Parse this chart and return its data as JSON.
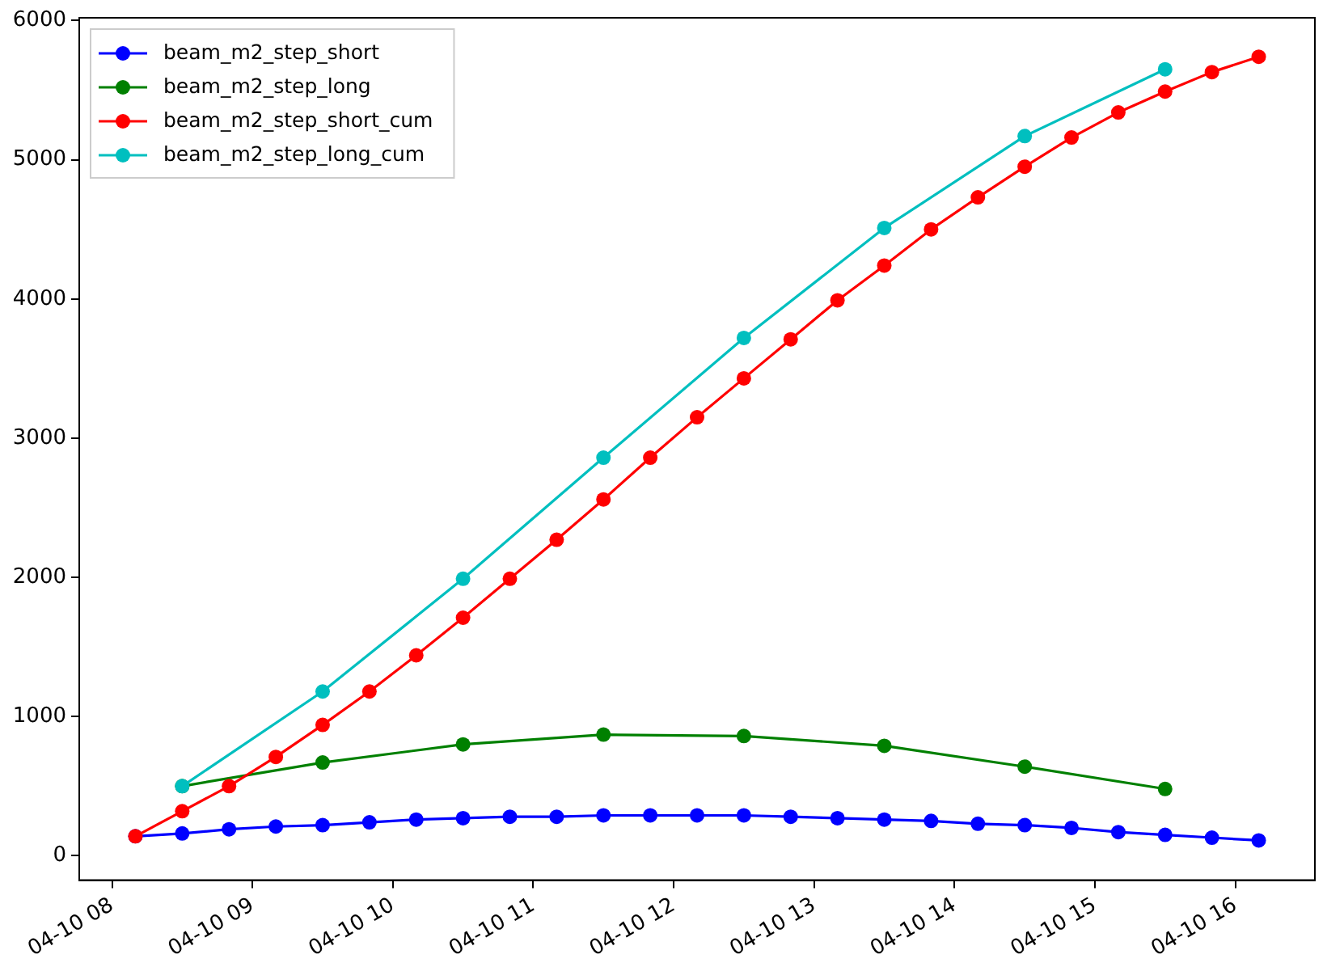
{
  "chart_data": {
    "type": "line",
    "marker": "circle",
    "line_style": "solid",
    "grid": false,
    "legend": "top left",
    "xlim": [
      "--04-10T07:46",
      "--04-10T16:34"
    ],
    "xticks": [
      {
        "value": "--04-10T08:00",
        "label": "04-10 08"
      },
      {
        "value": "--04-10T09:00",
        "label": "04-10 09"
      },
      {
        "value": "--04-10T10:00",
        "label": "04-10 10"
      },
      {
        "value": "--04-10T11:00",
        "label": "04-10 11"
      },
      {
        "value": "--04-10T12:00",
        "label": "04-10 12"
      },
      {
        "value": "--04-10T13:00",
        "label": "04-10 13"
      },
      {
        "value": "--04-10T14:00",
        "label": "04-10 14"
      },
      {
        "value": "--04-10T15:00",
        "label": "04-10 15"
      },
      {
        "value": "--04-10T16:00",
        "label": "04-10 16"
      }
    ],
    "ylim": [
      -175,
      6020
    ],
    "yticks": [
      0,
      1000,
      2000,
      3000,
      4000,
      5000,
      6000
    ],
    "x": [
      "--04-10T08:10",
      "--04-10T08:30",
      "--04-10T08:50",
      "--04-10T09:10",
      "--04-10T09:30",
      "--04-10T09:50",
      "--04-10T10:10",
      "--04-10T10:30",
      "--04-10T10:50",
      "--04-10T11:10",
      "--04-10T11:30",
      "--04-10T11:50",
      "--04-10T12:10",
      "--04-10T12:30",
      "--04-10T12:50",
      "--04-10T13:10",
      "--04-10T13:30",
      "--04-10T13:50",
      "--04-10T14:10",
      "--04-10T14:30",
      "--04-10T14:50",
      "--04-10T15:10",
      "--04-10T15:30",
      "--04-10T15:50",
      "--04-10T16:10"
    ],
    "series": [
      {
        "name": "beam_m2_step_short",
        "color": "#0000ff",
        "values": [
          140,
          160,
          190,
          210,
          220,
          240,
          260,
          270,
          280,
          280,
          290,
          290,
          290,
          290,
          280,
          270,
          260,
          250,
          230,
          220,
          200,
          170,
          150,
          130,
          110
        ]
      },
      {
        "name": "beam_m2_step_long",
        "color": "#008000",
        "x": [
          "--04-10T08:30",
          "--04-10T09:30",
          "--04-10T10:30",
          "--04-10T11:30",
          "--04-10T12:30",
          "--04-10T13:30",
          "--04-10T14:30",
          "--04-10T15:30"
        ],
        "values": [
          500,
          670,
          800,
          870,
          860,
          790,
          640,
          480
        ]
      },
      {
        "name": "beam_m2_step_short_cum",
        "color": "#ff0000",
        "values": [
          140,
          320,
          500,
          710,
          940,
          1180,
          1440,
          1710,
          1990,
          2270,
          2560,
          2860,
          3150,
          3430,
          3710,
          3990,
          4240,
          4500,
          4730,
          4950,
          5160,
          5340,
          5490,
          5630,
          5740
        ]
      },
      {
        "name": "beam_m2_step_long_cum",
        "color": "#00bfbf",
        "x": [
          "--04-10T08:30",
          "--04-10T09:30",
          "--04-10T10:30",
          "--04-10T11:30",
          "--04-10T12:30",
          "--04-10T13:30",
          "--04-10T14:30",
          "--04-10T15:30"
        ],
        "values": [
          500,
          1180,
          1990,
          2860,
          3720,
          4510,
          5170,
          5650
        ]
      }
    ]
  }
}
